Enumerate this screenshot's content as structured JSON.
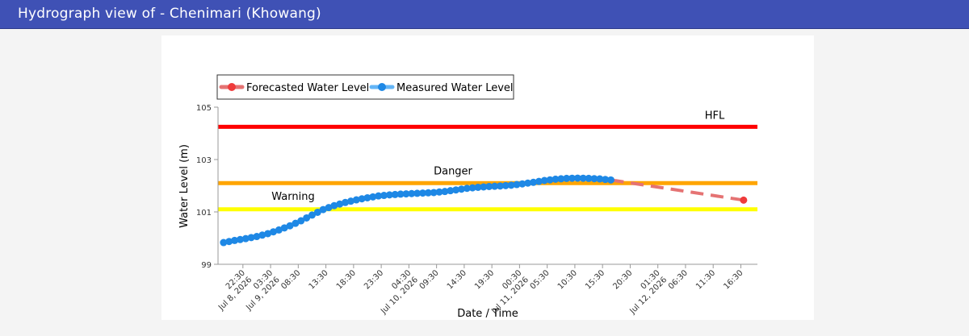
{
  "header": {
    "title": "Hydrograph view of - Chenimari (Khowang)"
  },
  "colors": {
    "header_bg": "#3f51b5",
    "hfl": "#ff0000",
    "danger": "#ffa500",
    "warning": "#ffff00",
    "measured": "#1e88e5",
    "forecast": "#e57373"
  },
  "chart_data": {
    "type": "line",
    "title": "",
    "xlabel": "Date / Time",
    "ylabel": "Water Level (m)",
    "ylim": [
      99,
      105
    ],
    "yticks": [
      "99",
      "101",
      "103",
      "105"
    ],
    "xlim": [
      "Jul 8, 2026 18:00",
      "Jul 12, 2026 19:30"
    ],
    "grid": false,
    "legend_position": "top-left",
    "legend": [
      "Forecasted Water Level",
      "Measured Water Level"
    ],
    "x_ticks": [
      {
        "t": "Jul 8, 2026 22:30",
        "lines": [
          "22:30",
          "Jul 8, 2026"
        ]
      },
      {
        "t": "Jul 9, 2026 03:30",
        "lines": [
          "03:30",
          "Jul 9, 2026"
        ]
      },
      {
        "t": "Jul 9, 2026 08:30",
        "lines": [
          "08:30"
        ]
      },
      {
        "t": "Jul 9, 2026 13:30",
        "lines": [
          "13:30"
        ]
      },
      {
        "t": "Jul 9, 2026 18:30",
        "lines": [
          "18:30"
        ]
      },
      {
        "t": "Jul 9, 2026 23:30",
        "lines": [
          "23:30"
        ]
      },
      {
        "t": "Jul 10, 2026 04:30",
        "lines": [
          "04:30",
          "Jul 10, 2026"
        ]
      },
      {
        "t": "Jul 10, 2026 09:30",
        "lines": [
          "09:30"
        ]
      },
      {
        "t": "Jul 10, 2026 14:30",
        "lines": [
          "14:30"
        ]
      },
      {
        "t": "Jul 10, 2026 19:30",
        "lines": [
          "19:30"
        ]
      },
      {
        "t": "Jul 11, 2026 00:30",
        "lines": [
          "00:30",
          "Jul 11, 2026"
        ]
      },
      {
        "t": "Jul 11, 2026 05:30",
        "lines": [
          "05:30"
        ]
      },
      {
        "t": "Jul 11, 2026 10:30",
        "lines": [
          "10:30"
        ]
      },
      {
        "t": "Jul 11, 2026 15:30",
        "lines": [
          "15:30"
        ]
      },
      {
        "t": "Jul 11, 2026 20:30",
        "lines": [
          "20:30"
        ]
      },
      {
        "t": "Jul 12, 2026 01:30",
        "lines": [
          "01:30",
          "Jul 12, 2026"
        ]
      },
      {
        "t": "Jul 12, 2026 06:30",
        "lines": [
          "06:30"
        ]
      },
      {
        "t": "Jul 12, 2026 11:30",
        "lines": [
          "11:30"
        ]
      },
      {
        "t": "Jul 12, 2026 16:30",
        "lines": [
          "16:30"
        ]
      }
    ],
    "threshold_lines": [
      {
        "name": "HFL",
        "value": 104.25,
        "color": "#ff0000"
      },
      {
        "name": "Danger",
        "value": 102.1,
        "color": "#ffa500"
      },
      {
        "name": "Warning",
        "value": 101.1,
        "color": "#ffff00"
      }
    ],
    "series": [
      {
        "name": "Measured Water Level",
        "color": "#1e88e5",
        "points": [
          [
            "Jul 8, 2026 19:00",
            99.83
          ],
          [
            "Jul 8, 2026 21:00",
            99.91
          ],
          [
            "Jul 8, 2026 23:00",
            99.98
          ],
          [
            "Jul 9, 2026 01:00",
            100.06
          ],
          [
            "Jul 9, 2026 03:00",
            100.17
          ],
          [
            "Jul 9, 2026 05:00",
            100.31
          ],
          [
            "Jul 9, 2026 07:00",
            100.47
          ],
          [
            "Jul 9, 2026 09:00",
            100.66
          ],
          [
            "Jul 9, 2026 11:00",
            100.88
          ],
          [
            "Jul 9, 2026 13:00",
            101.09
          ],
          [
            "Jul 9, 2026 15:00",
            101.24
          ],
          [
            "Jul 9, 2026 17:00",
            101.36
          ],
          [
            "Jul 9, 2026 19:00",
            101.46
          ],
          [
            "Jul 9, 2026 21:00",
            101.54
          ],
          [
            "Jul 9, 2026 23:00",
            101.61
          ],
          [
            "Jul 10, 2026 01:00",
            101.65
          ],
          [
            "Jul 10, 2026 03:00",
            101.68
          ],
          [
            "Jul 10, 2026 05:00",
            101.7
          ],
          [
            "Jul 10, 2026 07:00",
            101.72
          ],
          [
            "Jul 10, 2026 09:00",
            101.74
          ],
          [
            "Jul 10, 2026 11:00",
            101.78
          ],
          [
            "Jul 10, 2026 13:00",
            101.84
          ],
          [
            "Jul 10, 2026 15:00",
            101.9
          ],
          [
            "Jul 10, 2026 17:00",
            101.94
          ],
          [
            "Jul 10, 2026 19:00",
            101.97
          ],
          [
            "Jul 10, 2026 21:00",
            101.99
          ],
          [
            "Jul 10, 2026 23:00",
            102.02
          ],
          [
            "Jul 11, 2026 01:00",
            102.07
          ],
          [
            "Jul 11, 2026 03:00",
            102.13
          ],
          [
            "Jul 11, 2026 05:00",
            102.2
          ],
          [
            "Jul 11, 2026 07:00",
            102.25
          ],
          [
            "Jul 11, 2026 09:00",
            102.28
          ],
          [
            "Jul 11, 2026 11:00",
            102.29
          ],
          [
            "Jul 11, 2026 13:00",
            102.28
          ],
          [
            "Jul 11, 2026 15:00",
            102.26
          ],
          [
            "Jul 11, 2026 17:00",
            102.22
          ]
        ]
      },
      {
        "name": "Forecasted Water Level",
        "color": "#e57373",
        "points": [
          [
            "Jul 11, 2026 17:00",
            102.22
          ],
          [
            "Jul 12, 2026 17:00",
            101.45
          ]
        ]
      }
    ]
  }
}
